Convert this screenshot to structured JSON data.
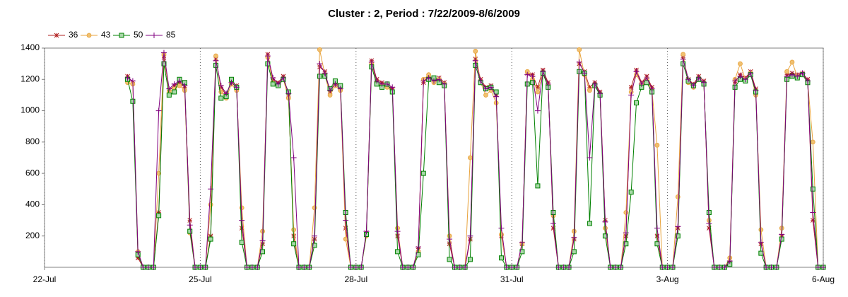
{
  "chart_data": {
    "type": "line",
    "title": "Cluster : 2, Period : 7/22/2009-8/6/2009",
    "legend": "top-left",
    "grid": "x",
    "xlim": [
      0,
      15
    ],
    "xticks": [
      {
        "value": 0,
        "label": "22-Jul"
      },
      {
        "value": 3,
        "label": "25-Jul"
      },
      {
        "value": 6,
        "label": "28-Jul"
      },
      {
        "value": 9,
        "label": "31-Jul"
      },
      {
        "value": 12,
        "label": "3-Aug"
      },
      {
        "value": 15,
        "label": "6-Aug"
      }
    ],
    "ylim": [
      0,
      1400
    ],
    "yticks": [
      200,
      400,
      600,
      800,
      1000,
      1200,
      1400
    ],
    "x": [
      1.6,
      1.7,
      1.8,
      1.9,
      2,
      2.1,
      2.2,
      2.3,
      2.4,
      2.5,
      2.6,
      2.7,
      2.8,
      2.9,
      3,
      3.1,
      3.2,
      3.3,
      3.4,
      3.5,
      3.6,
      3.7,
      3.8,
      3.9,
      4,
      4.1,
      4.2,
      4.3,
      4.4,
      4.5,
      4.6,
      4.7,
      4.8,
      4.9,
      5,
      5.1,
      5.2,
      5.3,
      5.4,
      5.5,
      5.6,
      5.7,
      5.8,
      5.9,
      6,
      6.1,
      6.2,
      6.3,
      6.4,
      6.5,
      6.6,
      6.7,
      6.8,
      6.9,
      7,
      7.1,
      7.2,
      7.3,
      7.4,
      7.5,
      7.6,
      7.7,
      7.8,
      7.9,
      8,
      8.1,
      8.2,
      8.3,
      8.4,
      8.5,
      8.6,
      8.7,
      8.8,
      8.9,
      9,
      9.1,
      9.2,
      9.3,
      9.4,
      9.5,
      9.6,
      9.7,
      9.8,
      9.9,
      10,
      10.1,
      10.2,
      10.3,
      10.4,
      10.5,
      10.6,
      10.7,
      10.8,
      10.9,
      11,
      11.1,
      11.2,
      11.3,
      11.4,
      11.5,
      11.6,
      11.7,
      11.8,
      11.9,
      12,
      12.1,
      12.2,
      12.3,
      12.4,
      12.5,
      12.6,
      12.7,
      12.8,
      12.9,
      13,
      13.1,
      13.2,
      13.3,
      13.4,
      13.5,
      13.6,
      13.7,
      13.8,
      13.9,
      14,
      14.1,
      14.2,
      14.3,
      14.4,
      14.5,
      14.6,
      14.7,
      14.8,
      14.9,
      15
    ],
    "series": [
      {
        "name": "36",
        "color": "#b22222",
        "marker": "star",
        "values": [
          1220,
          1180,
          60,
          0,
          0,
          0,
          350,
          1340,
          1130,
          1160,
          1180,
          1150,
          300,
          0,
          0,
          0,
          200,
          1330,
          1150,
          1100,
          1190,
          1160,
          250,
          0,
          0,
          0,
          150,
          1360,
          1200,
          1180,
          1220,
          1100,
          200,
          0,
          0,
          0,
          180,
          1280,
          1250,
          1120,
          1180,
          1150,
          250,
          0,
          0,
          0,
          220,
          1320,
          1200,
          1180,
          1160,
          1140,
          200,
          0,
          0,
          0,
          120,
          1180,
          1220,
          1200,
          1210,
          1180,
          150,
          0,
          0,
          0,
          180,
          1330,
          1200,
          1150,
          1160,
          1100,
          200,
          0,
          0,
          0,
          150,
          1240,
          1230,
          1150,
          1260,
          1180,
          250,
          0,
          0,
          0,
          180,
          1300,
          1250,
          1150,
          1180,
          1120,
          300,
          0,
          0,
          0,
          200,
          1150,
          1260,
          1180,
          1220,
          1150,
          200,
          0,
          0,
          0,
          250,
          1340,
          1200,
          1170,
          1220,
          1190,
          250,
          0,
          0,
          0,
          30,
          1180,
          1230,
          1210,
          1250,
          1140,
          150,
          0,
          0,
          0,
          200,
          1230,
          1240,
          1230,
          1240,
          1200,
          300,
          0,
          0
        ]
      },
      {
        "name": "43",
        "color": "#e8a33c",
        "marker": "circle",
        "values": [
          1180,
          1170,
          100,
          0,
          0,
          0,
          600,
          1360,
          1120,
          1140,
          1160,
          1130,
          220,
          0,
          0,
          0,
          400,
          1350,
          1120,
          1080,
          1170,
          1130,
          380,
          0,
          0,
          0,
          230,
          1340,
          1180,
          1160,
          1200,
          1080,
          240,
          0,
          0,
          0,
          380,
          1390,
          1230,
          1100,
          1160,
          1130,
          180,
          0,
          0,
          0,
          200,
          1300,
          1180,
          1160,
          1150,
          1120,
          250,
          0,
          0,
          0,
          100,
          1200,
          1230,
          1180,
          1200,
          1170,
          200,
          0,
          0,
          0,
          700,
          1380,
          1180,
          1100,
          1130,
          1050,
          210,
          0,
          0,
          0,
          150,
          1250,
          1200,
          1120,
          1240,
          1160,
          330,
          0,
          0,
          0,
          230,
          1390,
          1230,
          1130,
          1160,
          1100,
          250,
          0,
          0,
          0,
          350,
          1120,
          1230,
          1170,
          1200,
          1130,
          780,
          0,
          0,
          0,
          450,
          1360,
          1180,
          1150,
          1200,
          1170,
          300,
          0,
          0,
          0,
          60,
          1200,
          1300,
          1200,
          1240,
          1100,
          240,
          0,
          0,
          0,
          250,
          1250,
          1310,
          1220,
          1230,
          1180,
          800,
          0,
          0
        ]
      },
      {
        "name": "50",
        "color": "#008000",
        "marker": "square",
        "values": [
          1200,
          1060,
          80,
          0,
          0,
          0,
          330,
          1300,
          1100,
          1120,
          1200,
          1180,
          230,
          0,
          0,
          0,
          180,
          1290,
          1080,
          1090,
          1200,
          1150,
          160,
          0,
          0,
          0,
          100,
          1300,
          1170,
          1160,
          1200,
          1120,
          150,
          0,
          0,
          0,
          140,
          1220,
          1220,
          1140,
          1190,
          1160,
          350,
          0,
          0,
          0,
          210,
          1280,
          1170,
          1150,
          1170,
          1120,
          100,
          0,
          0,
          0,
          80,
          600,
          1200,
          1210,
          1180,
          1160,
          50,
          0,
          0,
          0,
          50,
          1290,
          1180,
          1140,
          1150,
          1120,
          60,
          0,
          0,
          0,
          100,
          1170,
          1180,
          520,
          1240,
          1150,
          350,
          0,
          0,
          0,
          100,
          1250,
          1240,
          280,
          1160,
          1100,
          200,
          0,
          0,
          0,
          150,
          480,
          1050,
          1150,
          1180,
          1120,
          150,
          0,
          0,
          0,
          200,
          1300,
          1190,
          1160,
          1200,
          1170,
          350,
          0,
          0,
          0,
          20,
          1150,
          1200,
          1190,
          1230,
          1120,
          90,
          0,
          0,
          0,
          180,
          1200,
          1220,
          1210,
          1230,
          1180,
          500,
          0,
          0
        ]
      },
      {
        "name": "85",
        "color": "#800080",
        "marker": "plus",
        "values": [
          1210,
          1190,
          100,
          0,
          0,
          0,
          1000,
          1370,
          1140,
          1170,
          1190,
          1160,
          270,
          0,
          0,
          0,
          500,
          1320,
          1160,
          1110,
          1180,
          1150,
          300,
          0,
          0,
          0,
          170,
          1350,
          1210,
          1170,
          1210,
          1110,
          700,
          0,
          0,
          0,
          200,
          1300,
          1240,
          1130,
          1170,
          1140,
          300,
          0,
          0,
          0,
          230,
          1310,
          1190,
          1170,
          1170,
          1150,
          230,
          0,
          0,
          0,
          130,
          1190,
          1210,
          1190,
          1200,
          1170,
          180,
          0,
          0,
          0,
          200,
          1320,
          1190,
          1140,
          1150,
          1090,
          250,
          0,
          0,
          0,
          160,
          1230,
          1220,
          1000,
          1250,
          1170,
          280,
          0,
          0,
          0,
          190,
          1310,
          1240,
          700,
          1170,
          1110,
          290,
          0,
          0,
          0,
          220,
          1100,
          1250,
          1170,
          1210,
          1140,
          250,
          0,
          0,
          0,
          260,
          1330,
          1200,
          1160,
          1210,
          1180,
          280,
          0,
          0,
          0,
          40,
          1190,
          1220,
          1200,
          1240,
          1130,
          160,
          0,
          0,
          0,
          210,
          1220,
          1230,
          1220,
          1240,
          1190,
          350,
          0,
          0
        ]
      }
    ]
  }
}
